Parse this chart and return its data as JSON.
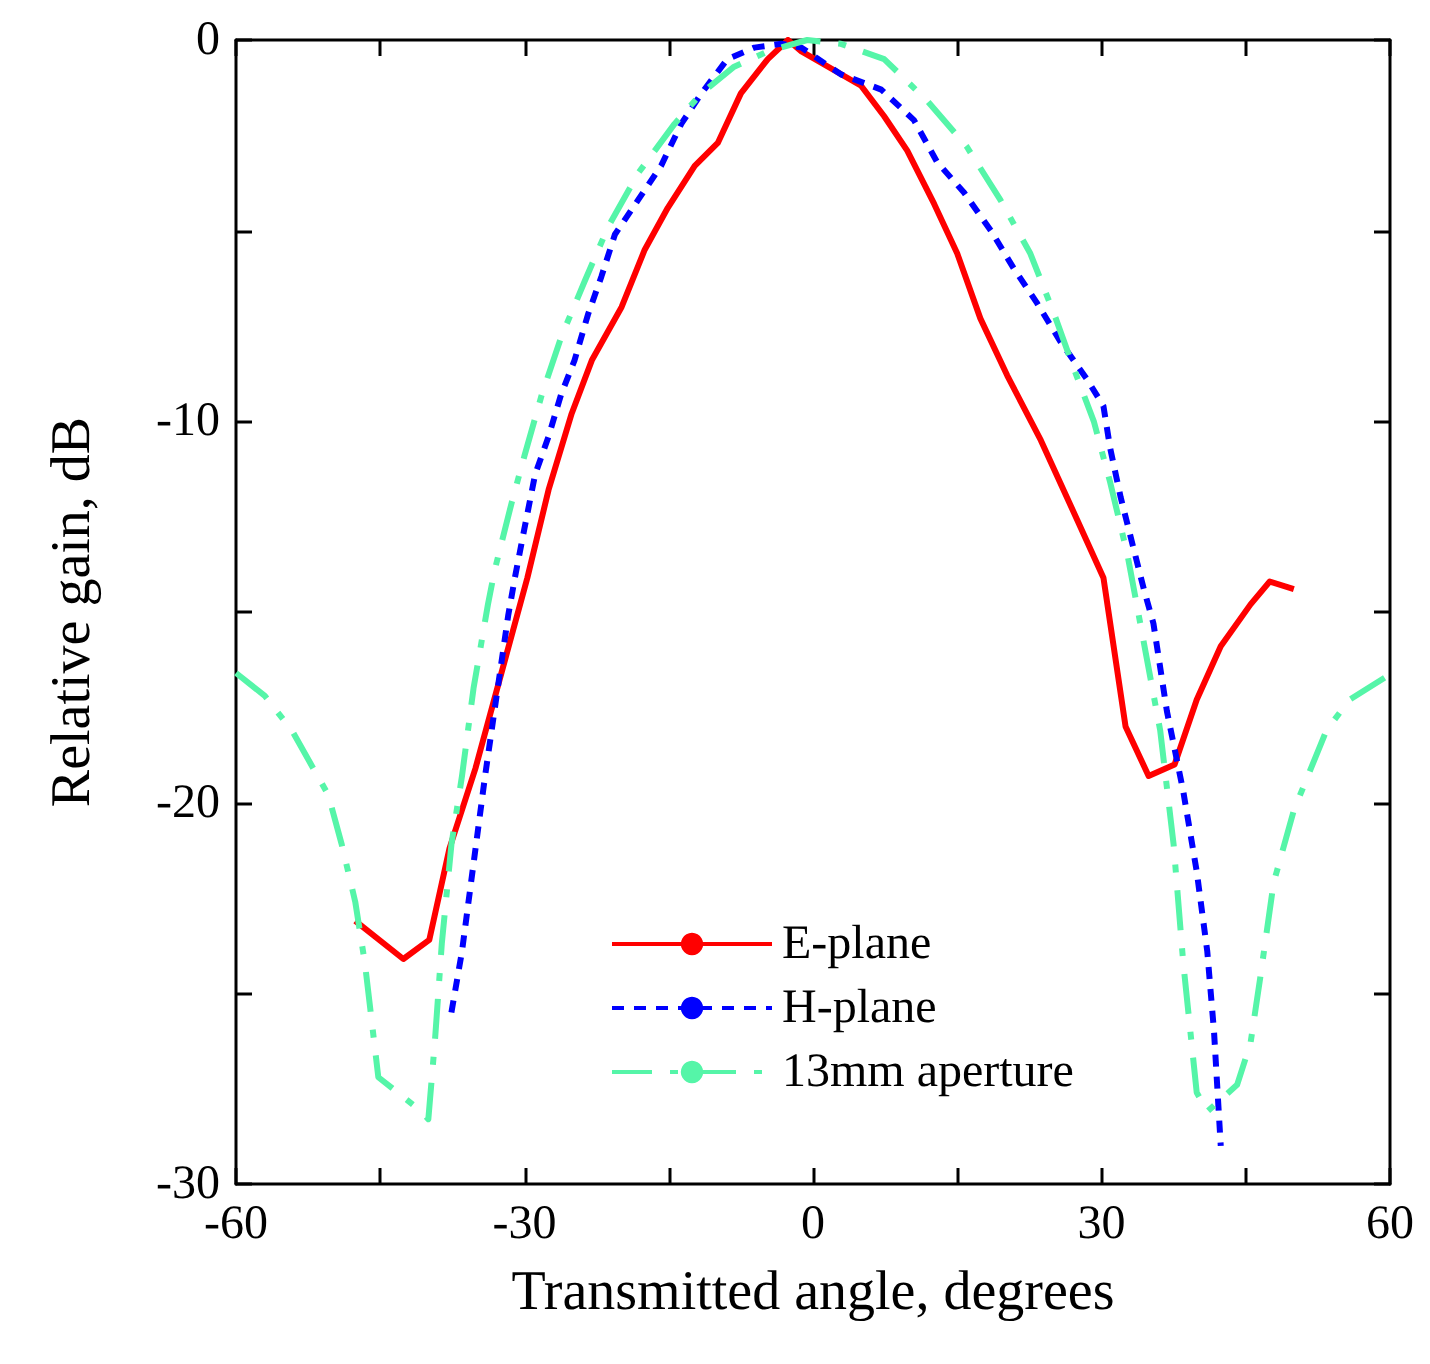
{
  "chart_data": {
    "type": "line",
    "xlabel": "Transmitted angle, degrees",
    "ylabel": "Relative gain, dB",
    "xlim": [
      -60,
      60
    ],
    "ylim": [
      -30,
      0
    ],
    "xticks": [
      -60,
      {
        "value": -45,
        "label": null
      },
      -30,
      {
        "value": -15,
        "label": null
      },
      0,
      {
        "value": 15,
        "label": null
      },
      30,
      {
        "value": 45,
        "label": null
      },
      60
    ],
    "yticks": [
      -30,
      {
        "value": -25,
        "label": null
      },
      -20,
      {
        "value": -15,
        "label": null
      },
      -10,
      {
        "value": -5,
        "label": null
      },
      0
    ],
    "grid": false,
    "legend": "bottom",
    "marker": "none",
    "series": [
      {
        "name": "E-plane",
        "color": "#ff0000",
        "line_style": "solid",
        "x": [
          -47.6,
          -42.6,
          -39.9,
          -37.8,
          -35.1,
          -29.7,
          -27.5,
          -25.1,
          -23,
          -19.9,
          -17.5,
          -15.1,
          -12.3,
          -9.9,
          -7.5,
          -4.7,
          -2.6,
          -1.2,
          5,
          7.4,
          9.8,
          12.6,
          15,
          17.4,
          20.2,
          23.7,
          27.5,
          30.2,
          32.5,
          34.9,
          37.6,
          39.9,
          42.4,
          45.5,
          47.5,
          50
        ],
        "values": [
          -23.1,
          -24.1,
          -23.6,
          -21.2,
          -19.1,
          -14.1,
          -11.8,
          -9.8,
          -8.4,
          -7,
          -5.5,
          -4.4,
          -3.3,
          -2.7,
          -1.4,
          -0.5,
          0,
          -0.3,
          -1.2,
          -2,
          -2.9,
          -4.3,
          -5.6,
          -7.3,
          -8.8,
          -10.5,
          -12.6,
          -14.1,
          -18,
          -19.3,
          -19,
          -17.3,
          -15.9,
          -14.8,
          -14.2,
          -14.4
        ]
      },
      {
        "name": "H-plane",
        "color": "#0000ff",
        "line_style": "dashed",
        "x": [
          -37.6,
          -36.5,
          -35.3,
          -34.1,
          -32.9,
          -31.7,
          -31,
          -30,
          -28.9,
          -27.5,
          -26.2,
          -24.8,
          -23.4,
          -22,
          -20.6,
          -18.2,
          -15.8,
          -13.7,
          -11.6,
          -8.9,
          -6.1,
          -3.3,
          -1.2,
          2.9,
          7.1,
          10.5,
          12.9,
          15.7,
          18.5,
          20.9,
          23.3,
          25.7,
          28.5,
          30.2,
          30.9,
          32,
          33.4,
          34.4,
          35.4,
          36.8,
          38.5,
          39.9,
          41,
          41.7,
          42.4
        ],
        "values": [
          -25.5,
          -23.9,
          -21.6,
          -19.3,
          -17.2,
          -15.1,
          -14.1,
          -12.8,
          -11.4,
          -10.4,
          -9.3,
          -8.4,
          -7.2,
          -6.2,
          -5.1,
          -4.2,
          -3.3,
          -2.2,
          -1.4,
          -0.5,
          -0.2,
          -0.1,
          -0.2,
          -0.9,
          -1.3,
          -2.1,
          -3.2,
          -4,
          -5,
          -6,
          -6.9,
          -7.9,
          -8.9,
          -9.6,
          -10.7,
          -12,
          -13.4,
          -14.4,
          -15.3,
          -17.6,
          -19.7,
          -21.8,
          -23.9,
          -26,
          -29
        ]
      },
      {
        "name": "13mm aperture",
        "color": "#55f5a8",
        "line_style": "dashdot",
        "x": [
          -60,
          -57,
          -54.2,
          -50.4,
          -49,
          -47.6,
          -46.6,
          -45.2,
          -40.7,
          -40,
          -39.3,
          -38.6,
          -37.6,
          -36.5,
          -35.3,
          -33.8,
          -33.1,
          -31.3,
          -30,
          -28.2,
          -26.2,
          -23.7,
          -21.3,
          -18.2,
          -14.4,
          -11.6,
          -8.2,
          -4.7,
          -0.6,
          2.9,
          7.4,
          11.9,
          16,
          19.5,
          22.6,
          25.1,
          27.1,
          29.2,
          30.9,
          32.7,
          34.4,
          36.1,
          37.5,
          38.5,
          39.9,
          41,
          44.1,
          45.5,
          46.5,
          47.9,
          50,
          53.4,
          55.8,
          59.6
        ],
        "values": [
          -16.6,
          -17.2,
          -18.1,
          -19.8,
          -21.1,
          -22.6,
          -24.2,
          -27.2,
          -28.1,
          -28.3,
          -26.2,
          -23.7,
          -21.1,
          -19.3,
          -17,
          -14.8,
          -13.9,
          -12.1,
          -10.9,
          -9.3,
          -7.8,
          -6.3,
          -4.9,
          -3.5,
          -2.2,
          -1.4,
          -0.7,
          -0.3,
          0,
          -0.1,
          -0.5,
          -1.6,
          -2.8,
          -4.2,
          -5.6,
          -7.2,
          -8.6,
          -10,
          -11.6,
          -13.5,
          -15.8,
          -18.1,
          -21.1,
          -24.2,
          -27.6,
          -28.1,
          -27.4,
          -26.3,
          -24.6,
          -22.1,
          -20.2,
          -18.1,
          -17.3,
          -16.7
        ]
      }
    ]
  }
}
